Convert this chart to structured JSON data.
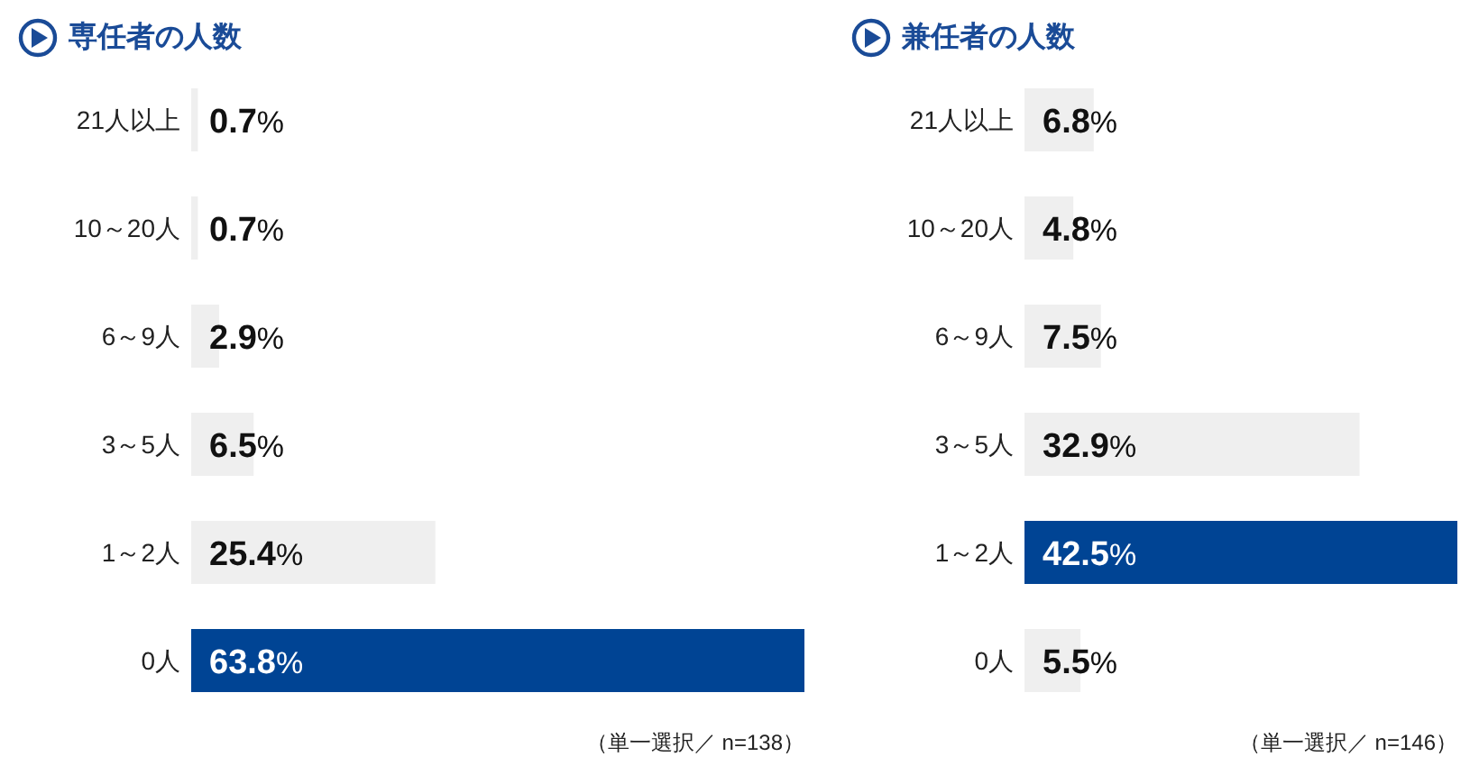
{
  "chart_data": [
    {
      "type": "bar",
      "orientation": "horizontal",
      "title": "専任者の人数",
      "categories": [
        "21人以上",
        "10～20人",
        "6～9人",
        "3～5人",
        "1～2人",
        "0人"
      ],
      "values": [
        0.7,
        0.7,
        2.9,
        6.5,
        25.4,
        63.8
      ],
      "colors": [
        "#efefef",
        "#efefef",
        "#efefef",
        "#efefef",
        "#efefef",
        "#004494"
      ],
      "value_labels": [
        "0.7%",
        "0.7%",
        "2.9%",
        "6.5%",
        "25.4%",
        "63.8%"
      ],
      "annotations": [
        "（単一選択／ n=138）"
      ]
    },
    {
      "type": "bar",
      "orientation": "horizontal",
      "title": "兼任者の人数",
      "categories": [
        "21人以上",
        "10～20人",
        "6～9人",
        "3～5人",
        "1～2人",
        "0人"
      ],
      "values": [
        6.8,
        4.8,
        7.5,
        32.9,
        42.5,
        5.5
      ],
      "colors": [
        "#efefef",
        "#efefef",
        "#efefef",
        "#efefef",
        "#004494",
        "#efefef"
      ],
      "value_labels": [
        "6.8%",
        "4.8%",
        "7.5%",
        "32.9%",
        "42.5%",
        "5.5%"
      ],
      "annotations": [
        "（単一選択／ n=146）"
      ]
    }
  ]
}
